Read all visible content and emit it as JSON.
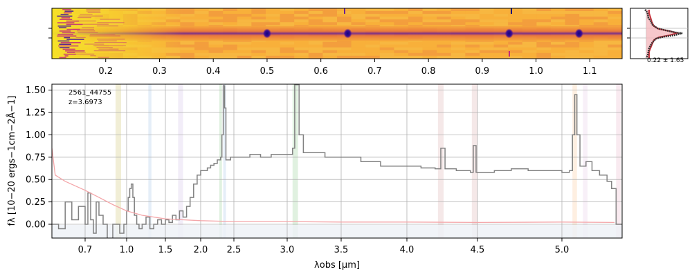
{
  "chart_data": [
    {
      "type": "heatmap",
      "panel": "2D spectrum",
      "xlabel": "",
      "x_tick_labels": [
        "0.2",
        "0.3",
        "0.4",
        "0.5",
        "0.6",
        "0.7",
        "0.8",
        "0.9",
        "1.0",
        "1.1"
      ],
      "x_ticks": [
        0.2,
        0.3,
        0.4,
        0.5,
        0.6,
        0.7,
        0.8,
        0.9,
        1.0,
        1.1
      ],
      "xlim": [
        0.1,
        1.16
      ],
      "colormap": "plasma",
      "trace_bright_spots": [
        0.5,
        0.65,
        0.95,
        1.08
      ],
      "grid": false
    },
    {
      "type": "line",
      "panel": "cross-dispersion profile",
      "annotation": "0.22 ± 1.65",
      "colors": {
        "profile": "#333333",
        "model": "#c8333d",
        "fill": "#f4b9be"
      },
      "grid": true
    },
    {
      "type": "line",
      "panel": "1D spectrum",
      "annotation_lines": [
        "2561_44755",
        "z=3.6973"
      ],
      "xlabel": "λobs [μm]",
      "ylabel": "fλ [10−20 ergs−1cm−2Å−1]",
      "x_tick_labels": [
        "0.7",
        "1.0",
        "1.5",
        "2.0",
        "2.5",
        "3.0",
        "3.5",
        "4.0",
        "4.5",
        "5.0"
      ],
      "x_ticks": [
        0.7,
        1.0,
        1.5,
        2.0,
        2.5,
        3.0,
        3.5,
        4.0,
        4.5,
        5.0
      ],
      "y_tick_labels": [
        "0.00",
        "0.25",
        "0.50",
        "0.75",
        "1.00",
        "1.25",
        "1.50"
      ],
      "y_ticks": [
        0,
        0.25,
        0.5,
        0.75,
        1.0,
        1.25,
        1.5
      ],
      "xlim": [
        0.6,
        5.4
      ],
      "ylim": [
        -0.16,
        1.56
      ],
      "x_scale": "sqrt-like",
      "grid": true,
      "series": [
        {
          "color": "#808080",
          "points": [
            [
              0.6,
              0.0
            ],
            [
              0.62,
              -0.05
            ],
            [
              0.64,
              0.25
            ],
            [
              0.66,
              0.05
            ],
            [
              0.68,
              0.2
            ],
            [
              0.7,
              0.0
            ],
            [
              0.72,
              0.35
            ],
            [
              0.74,
              0.05
            ],
            [
              0.76,
              -0.1
            ],
            [
              0.78,
              0.25
            ],
            [
              0.8,
              0.1
            ],
            [
              0.83,
              0.0
            ],
            [
              0.86,
              -0.16
            ],
            [
              0.9,
              0.0
            ],
            [
              0.95,
              -0.1
            ],
            [
              0.98,
              0.0
            ],
            [
              1.0,
              0.15
            ],
            [
              1.02,
              0.3
            ],
            [
              1.04,
              0.4
            ],
            [
              1.06,
              0.45
            ],
            [
              1.08,
              0.3
            ],
            [
              1.1,
              0.1
            ],
            [
              1.13,
              0.0
            ],
            [
              1.16,
              -0.05
            ],
            [
              1.2,
              0.0
            ],
            [
              1.25,
              0.08
            ],
            [
              1.3,
              -0.05
            ],
            [
              1.35,
              0.0
            ],
            [
              1.4,
              0.05
            ],
            [
              1.45,
              0.0
            ],
            [
              1.5,
              0.05
            ],
            [
              1.55,
              0.02
            ],
            [
              1.6,
              0.1
            ],
            [
              1.65,
              0.05
            ],
            [
              1.7,
              0.15
            ],
            [
              1.75,
              0.08
            ],
            [
              1.8,
              0.2
            ],
            [
              1.85,
              0.3
            ],
            [
              1.9,
              0.45
            ],
            [
              1.95,
              0.55
            ],
            [
              2.0,
              0.6
            ],
            [
              2.05,
              0.6
            ],
            [
              2.1,
              0.63
            ],
            [
              2.15,
              0.66
            ],
            [
              2.2,
              0.68
            ],
            [
              2.25,
              0.72
            ],
            [
              2.3,
              0.75
            ],
            [
              2.32,
              1.0
            ],
            [
              2.34,
              1.55
            ],
            [
              2.36,
              1.3
            ],
            [
              2.38,
              0.72
            ],
            [
              2.45,
              0.75
            ],
            [
              2.55,
              0.75
            ],
            [
              2.65,
              0.78
            ],
            [
              2.75,
              0.75
            ],
            [
              2.85,
              0.78
            ],
            [
              2.95,
              0.78
            ],
            [
              3.05,
              0.85
            ],
            [
              3.07,
              1.56
            ],
            [
              3.09,
              1.56
            ],
            [
              3.11,
              1.0
            ],
            [
              3.15,
              0.8
            ],
            [
              3.25,
              0.8
            ],
            [
              3.35,
              0.75
            ],
            [
              3.5,
              0.75
            ],
            [
              3.65,
              0.7
            ],
            [
              3.8,
              0.65
            ],
            [
              3.95,
              0.65
            ],
            [
              4.1,
              0.63
            ],
            [
              4.2,
              0.62
            ],
            [
              4.24,
              0.85
            ],
            [
              4.27,
              0.62
            ],
            [
              4.35,
              0.6
            ],
            [
              4.45,
              0.58
            ],
            [
              4.47,
              0.88
            ],
            [
              4.49,
              0.58
            ],
            [
              4.6,
              0.6
            ],
            [
              4.7,
              0.62
            ],
            [
              4.8,
              0.6
            ],
            [
              4.9,
              0.6
            ],
            [
              5.0,
              0.58
            ],
            [
              5.05,
              0.6
            ],
            [
              5.07,
              1.0
            ],
            [
              5.085,
              1.45
            ],
            [
              5.1,
              1.0
            ],
            [
              5.12,
              0.65
            ],
            [
              5.16,
              0.7
            ],
            [
              5.2,
              0.6
            ],
            [
              5.25,
              0.55
            ],
            [
              5.3,
              0.48
            ],
            [
              5.33,
              0.4
            ],
            [
              5.36,
              0.0
            ],
            [
              5.4,
              0.0
            ]
          ]
        },
        {
          "color": "#f4a6a9",
          "points": [
            [
              0.6,
              0.85
            ],
            [
              0.61,
              0.55
            ],
            [
              0.64,
              0.48
            ],
            [
              0.7,
              0.38
            ],
            [
              0.8,
              0.3
            ],
            [
              0.9,
              0.22
            ],
            [
              1.0,
              0.15
            ],
            [
              1.2,
              0.1
            ],
            [
              1.5,
              0.06
            ],
            [
              2.0,
              0.04
            ],
            [
              2.5,
              0.03
            ],
            [
              3.0,
              0.03
            ],
            [
              3.5,
              0.025
            ],
            [
              4.0,
              0.025
            ],
            [
              4.5,
              0.02
            ],
            [
              5.0,
              0.025
            ],
            [
              5.35,
              0.02
            ]
          ]
        }
      ],
      "shaded_bands": [
        {
          "x": [
            0.92,
            0.96
          ],
          "color": "#e6e0b4"
        },
        {
          "x": [
            1.28,
            1.32
          ],
          "color": "#cfe0f3"
        },
        {
          "x": [
            1.68,
            1.75
          ],
          "color": "#e7dff2"
        },
        {
          "x": [
            2.28,
            2.32
          ],
          "color": "#c7e6c7"
        },
        {
          "x": [
            2.34,
            2.38
          ],
          "color": "#cfe0f3"
        },
        {
          "x": [
            3.05,
            3.1
          ],
          "color": "#c7e6c7"
        },
        {
          "x": [
            4.22,
            4.26
          ],
          "color": "#ecd6d6"
        },
        {
          "x": [
            4.46,
            4.5
          ],
          "color": "#ecd6d6"
        },
        {
          "x": [
            5.07,
            5.1
          ],
          "color": "#fde2c8"
        },
        {
          "x": [
            5.14,
            5.17
          ],
          "color": "#f2e3f2"
        },
        {
          "x": [
            5.36,
            5.39
          ],
          "color": "#f4d8e4"
        }
      ]
    }
  ]
}
